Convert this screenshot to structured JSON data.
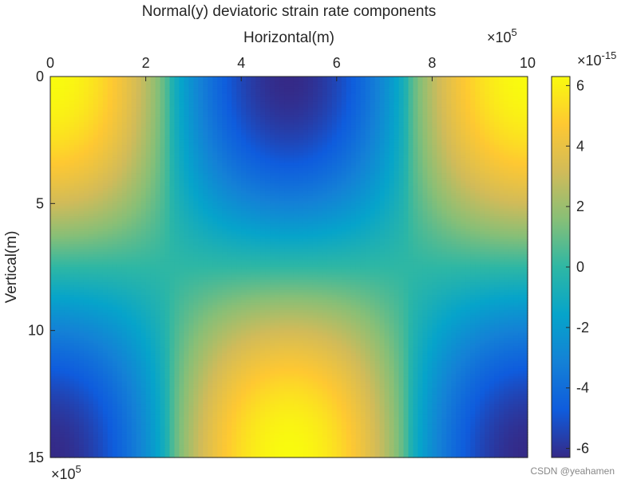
{
  "chart_data": {
    "type": "heatmap",
    "title": "Normal(y) deviatoric strain rate components",
    "xlabel": "Horizontal(m)",
    "ylabel": "Vertical(m)",
    "x_exponent_prefix": "×10",
    "x_exponent_power": "5",
    "y_exponent_prefix": "×10",
    "y_exponent_power": "5",
    "xlim": [
      0,
      10
    ],
    "ylim": [
      0,
      15
    ],
    "y_reversed": true,
    "x_axis_position": "top",
    "xticks": [
      0,
      2,
      4,
      6,
      8,
      10
    ],
    "xtick_labels": [
      "0",
      "2",
      "4",
      "6",
      "8",
      "10"
    ],
    "yticks": [
      0,
      5,
      10,
      15
    ],
    "ytick_labels": [
      "0",
      "5",
      "10",
      "15"
    ],
    "colorbar": {
      "label_prefix": "×10",
      "label_power": "-15",
      "limits": [
        -6.3,
        6.3
      ],
      "ticks": [
        6,
        4,
        2,
        0,
        -2,
        -4,
        -6
      ],
      "tick_labels": [
        "6",
        "4",
        "2",
        "0",
        "-2",
        "-4",
        "-6"
      ],
      "colormap": "parula"
    },
    "field": {
      "description_formula": "value = A * cos(2*pi*x/10) * cos(pi*y/15) with sharper gradient near edges",
      "amplitude": 6.3,
      "x_period": 10,
      "y_half_period": 15,
      "nx": 100,
      "ny": 150
    }
  },
  "watermark": "CSDN @yeahamen",
  "colors": {
    "parula": [
      "#352a87",
      "#0f5cdd",
      "#1481d6",
      "#06a4ca",
      "#2eb7a4",
      "#87bf77",
      "#d1bb59",
      "#fec832",
      "#f9fb0e"
    ]
  }
}
